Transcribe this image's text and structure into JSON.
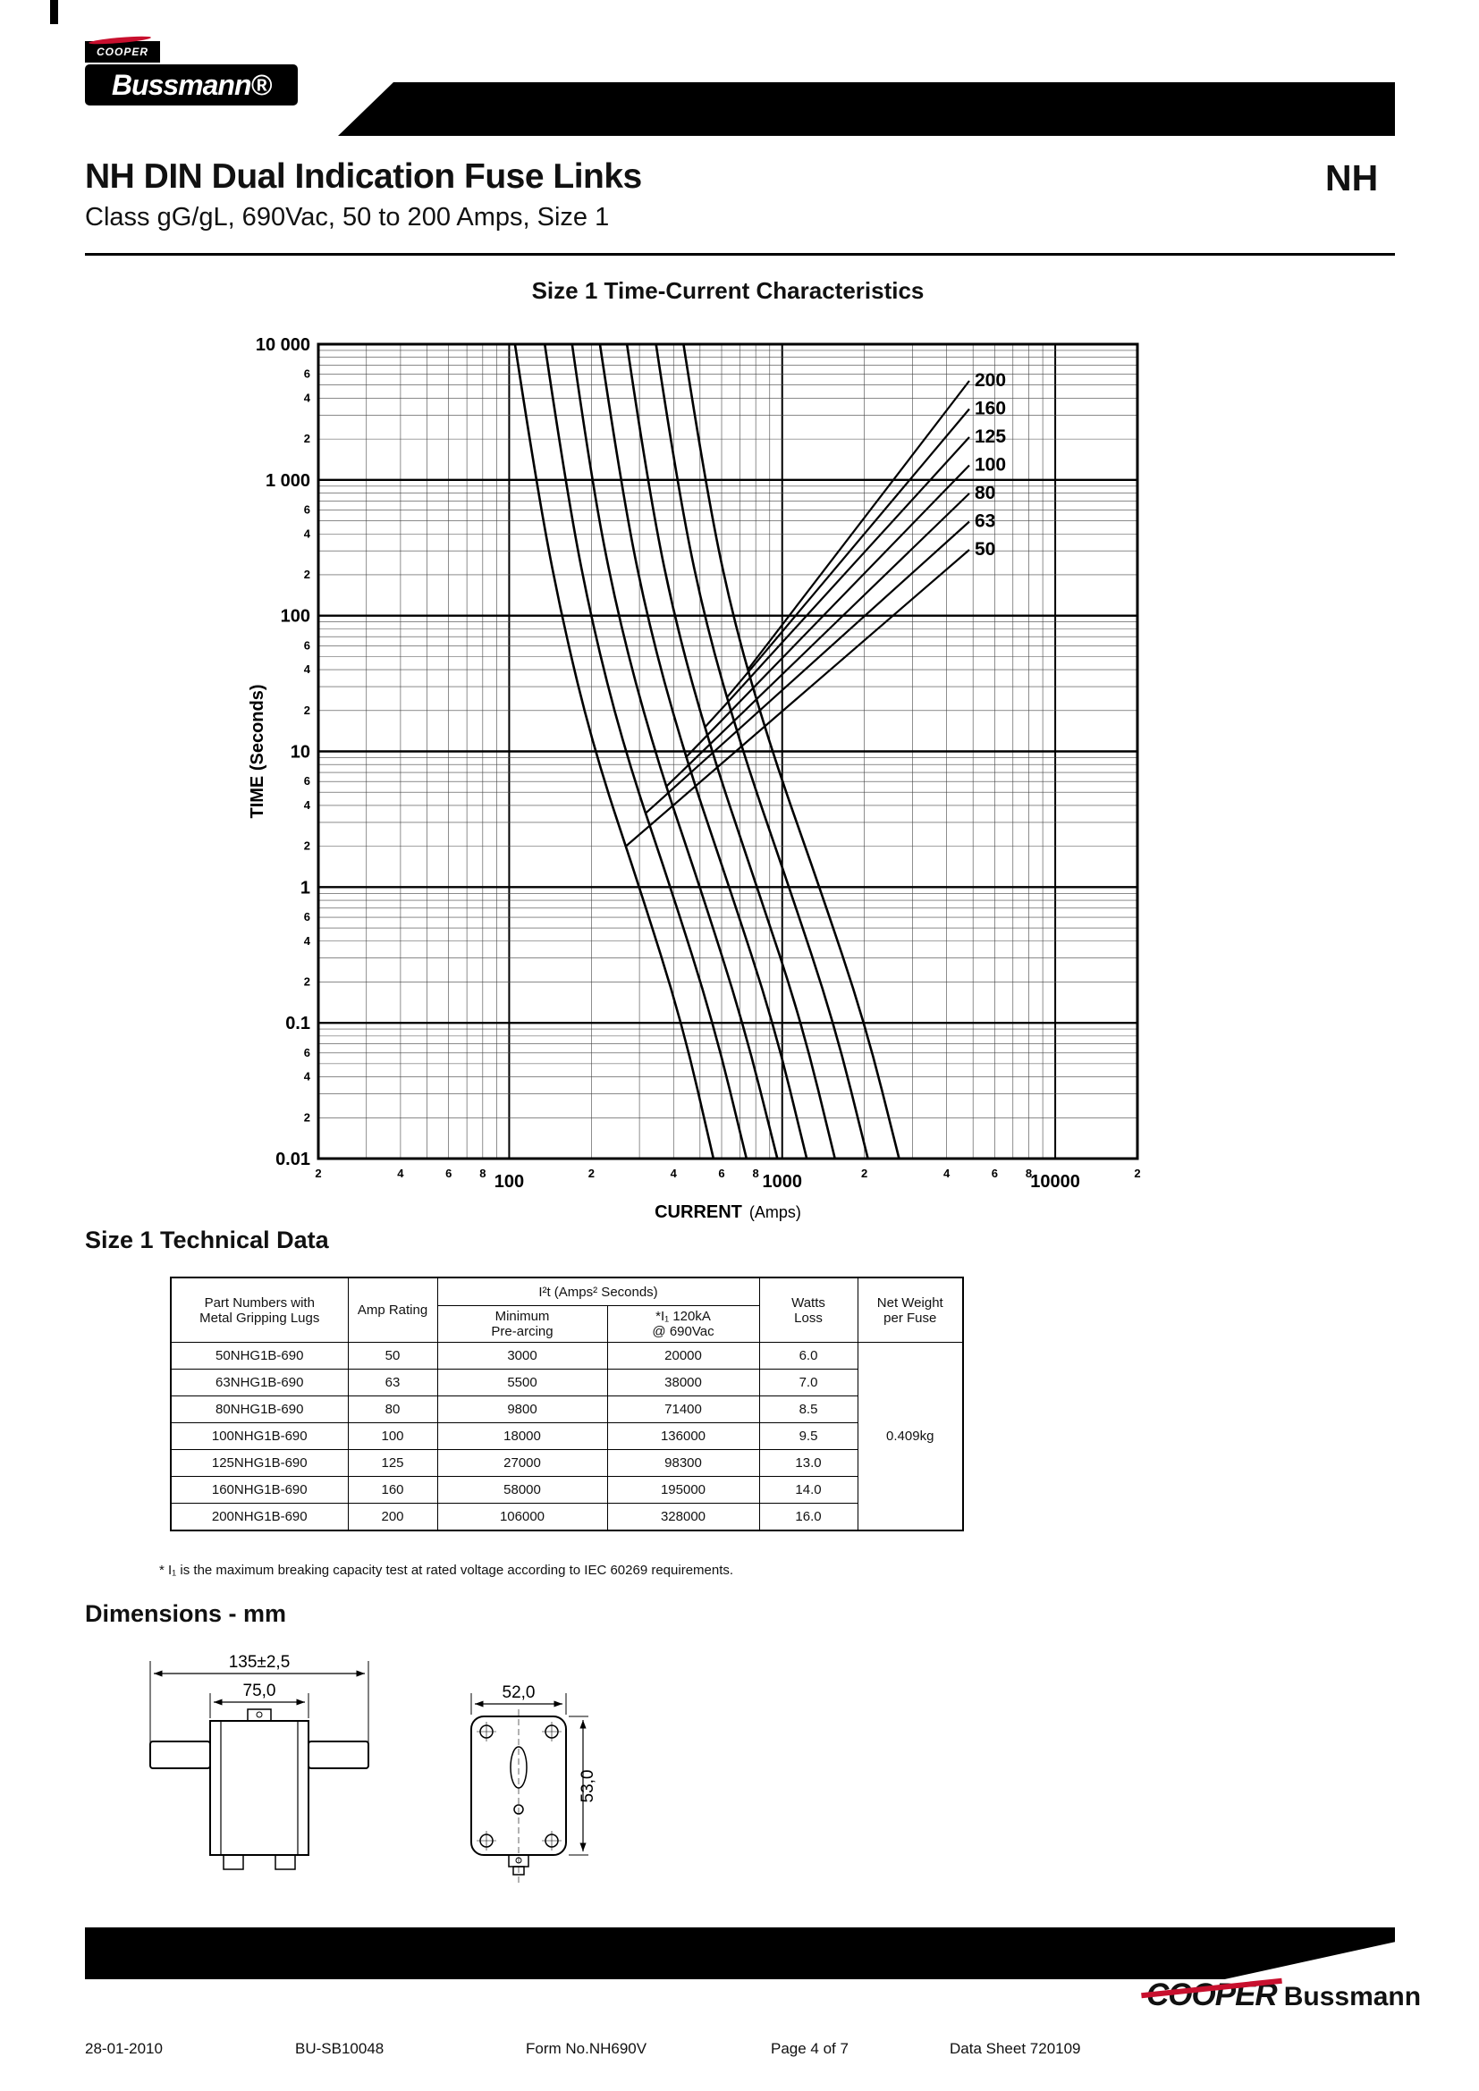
{
  "header": {
    "cooper_small": "COOPER",
    "bussmann_logo": "Bussmann®",
    "title": "NH DIN Dual Indication Fuse Links",
    "corner_code": "NH",
    "subtitle": "Class gG/gL, 690Vac, 50 to 200 Amps, Size 1"
  },
  "chart": {
    "heading": "Size 1 Time-Current Characteristics",
    "y_axis_title_bold": "TIME",
    "y_axis_title_unit": "(Seconds)",
    "x_axis_title_bold": "CURRENT",
    "x_axis_title_unit": "(Amps)"
  },
  "chart_data": {
    "type": "line",
    "title": "Size 1 Time-Current Characteristics",
    "xlabel": "CURRENT (Amps)",
    "ylabel": "TIME (Seconds)",
    "x_scale": "log",
    "y_scale": "log",
    "xlim": [
      20,
      20000
    ],
    "ylim": [
      0.01,
      10000
    ],
    "grid": true,
    "x_major_ticks": [
      {
        "value": 100,
        "label": "100"
      },
      {
        "value": 1000,
        "label": "1000"
      },
      {
        "value": 10000,
        "label": "10000"
      }
    ],
    "x_minor_tick_digits_labeled": [
      2,
      4,
      6,
      8
    ],
    "y_major_ticks": [
      {
        "value": 10000,
        "label": "10 000"
      },
      {
        "value": 1000,
        "label": "1 000"
      },
      {
        "value": 100,
        "label": "100"
      },
      {
        "value": 10,
        "label": "10"
      },
      {
        "value": 1,
        "label": "1"
      },
      {
        "value": 0.1,
        "label": "0.1"
      },
      {
        "value": 0.01,
        "label": "0.01"
      }
    ],
    "y_minor_tick_digits_labeled": [
      6,
      4,
      2
    ],
    "times_seconds": [
      10000,
      1000,
      100,
      10,
      1,
      0.1,
      0.01
    ],
    "series": [
      {
        "name": "50",
        "amps_at_times": [
          105,
          125,
          155,
          205,
          300,
          430,
          560
        ],
        "label_leader_time_s": 2
      },
      {
        "name": "63",
        "amps_at_times": [
          135,
          160,
          198,
          265,
          390,
          560,
          740
        ],
        "label_leader_time_s": 3.5
      },
      {
        "name": "80",
        "amps_at_times": [
          170,
          200,
          250,
          340,
          500,
          720,
          960
        ],
        "label_leader_time_s": 5.5
      },
      {
        "name": "100",
        "amps_at_times": [
          215,
          255,
          318,
          435,
          640,
          930,
          1230
        ],
        "label_leader_time_s": 9
      },
      {
        "name": "125",
        "amps_at_times": [
          270,
          320,
          400,
          550,
          810,
          1180,
          1560
        ],
        "label_leader_time_s": 15
      },
      {
        "name": "160",
        "amps_at_times": [
          345,
          410,
          515,
          715,
          1060,
          1550,
          2060
        ],
        "label_leader_time_s": 25
      },
      {
        "name": "200",
        "amps_at_times": [
          435,
          520,
          655,
          915,
          1370,
          2010,
          2680
        ],
        "label_leader_time_s": 40
      }
    ],
    "curve_label_order_top_to_bottom": [
      "200",
      "160",
      "125",
      "100",
      "80",
      "63",
      "50"
    ]
  },
  "technical": {
    "heading": "Size 1 Technical Data",
    "table": {
      "col_part": "Part Numbers with\nMetal Gripping Lugs",
      "col_amp": "Amp Rating",
      "col_i2t": "I²t (Amps² Seconds)",
      "col_min": "Minimum\nPre-arcing",
      "col_i1": "*I₁ 120kA\n@ 690Vac",
      "col_watts": "Watts\nLoss",
      "col_net": "Net Weight\nper Fuse",
      "net_weight": "0.409kg",
      "rows": [
        {
          "part": "50NHG1B-690",
          "amp": "50",
          "min": "3000",
          "i1": "20000",
          "watts": "6.0"
        },
        {
          "part": "63NHG1B-690",
          "amp": "63",
          "min": "5500",
          "i1": "38000",
          "watts": "7.0"
        },
        {
          "part": "80NHG1B-690",
          "amp": "80",
          "min": "9800",
          "i1": "71400",
          "watts": "8.5"
        },
        {
          "part": "100NHG1B-690",
          "amp": "100",
          "min": "18000",
          "i1": "136000",
          "watts": "9.5"
        },
        {
          "part": "125NHG1B-690",
          "amp": "125",
          "min": "27000",
          "i1": "98300",
          "watts": "13.0"
        },
        {
          "part": "160NHG1B-690",
          "amp": "160",
          "min": "58000",
          "i1": "195000",
          "watts": "14.0"
        },
        {
          "part": "200NHG1B-690",
          "amp": "200",
          "min": "106000",
          "i1": "328000",
          "watts": "16.0"
        }
      ]
    },
    "footnote": "* I₁ is the maximum breaking capacity test at rated voltage according to IEC 60269 requirements."
  },
  "dimensions": {
    "heading": "Dimensions - mm",
    "front_width_outer": "135±2,5",
    "front_width_body": "75,0",
    "side_width": "52,0",
    "side_height": "53,0"
  },
  "footer": {
    "date": "28-01-2010",
    "doc_number": "BU-SB10048",
    "form": "Form No.NH690V",
    "page": "Page 4 of 7",
    "datasheet": "Data Sheet 720109",
    "cooper": "COOPER",
    "bussmann": "Bussmann"
  },
  "colors": {
    "accent_red": "#c8102e",
    "ink": "#000000"
  }
}
